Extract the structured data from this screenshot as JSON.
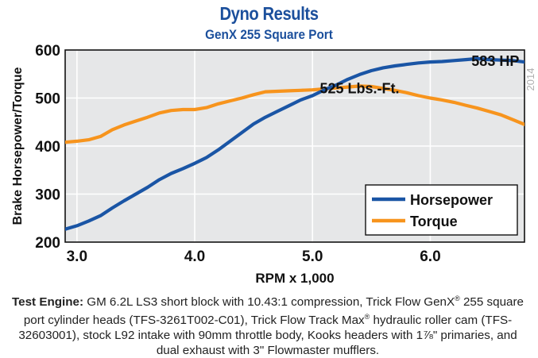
{
  "chart_data": {
    "type": "line",
    "title": "Dyno Results",
    "subtitle": "GenX 255 Square Port",
    "xlabel": "RPM x 1,000",
    "ylabel": "Brake Horsepower/Torque",
    "xlim": [
      2.9,
      6.8
    ],
    "ylim": [
      200,
      600
    ],
    "x_ticks": [
      3.0,
      4.0,
      5.0,
      6.0
    ],
    "x_tick_labels": [
      "3.0",
      "4.0",
      "5.0",
      "6.0"
    ],
    "y_ticks": [
      200,
      300,
      400,
      500,
      600
    ],
    "y_tick_labels": [
      "200",
      "300",
      "400",
      "500",
      "600"
    ],
    "grid": true,
    "legend": "bottom-right",
    "year_label": "2014",
    "series": [
      {
        "name": "Horsepower",
        "color": "#1a55a5",
        "x": [
          2.9,
          3.0,
          3.1,
          3.2,
          3.3,
          3.4,
          3.5,
          3.6,
          3.7,
          3.8,
          3.9,
          4.0,
          4.1,
          4.2,
          4.3,
          4.4,
          4.5,
          4.6,
          4.7,
          4.8,
          4.9,
          5.0,
          5.1,
          5.2,
          5.3,
          5.4,
          5.5,
          5.6,
          5.7,
          5.8,
          5.9,
          6.0,
          6.1,
          6.2,
          6.3,
          6.4,
          6.5,
          6.6,
          6.7,
          6.8
        ],
        "values": [
          227,
          234,
          244,
          255,
          271,
          286,
          300,
          314,
          330,
          343,
          353,
          364,
          376,
          392,
          410,
          428,
          446,
          460,
          472,
          484,
          496,
          505,
          517,
          527,
          539,
          549,
          557,
          563,
          567,
          570,
          573,
          575,
          576,
          578,
          580,
          582,
          580,
          579,
          578,
          575
        ]
      },
      {
        "name": "Torque",
        "color": "#f7941d",
        "x": [
          2.9,
          3.0,
          3.1,
          3.2,
          3.3,
          3.4,
          3.5,
          3.6,
          3.7,
          3.8,
          3.9,
          4.0,
          4.1,
          4.2,
          4.3,
          4.4,
          4.5,
          4.6,
          4.7,
          4.8,
          4.9,
          5.0,
          5.1,
          5.2,
          5.3,
          5.4,
          5.5,
          5.6,
          5.7,
          5.8,
          5.9,
          6.0,
          6.1,
          6.2,
          6.3,
          6.4,
          6.5,
          6.6,
          6.7,
          6.8
        ],
        "values": [
          408,
          410,
          413,
          420,
          434,
          444,
          452,
          460,
          469,
          474,
          476,
          476,
          480,
          488,
          494,
          500,
          507,
          513,
          514,
          515,
          516,
          517,
          519,
          521,
          523,
          525,
          524,
          520,
          516,
          511,
          505,
          500,
          496,
          491,
          485,
          479,
          472,
          465,
          455,
          445
        ]
      }
    ],
    "annotations": [
      {
        "text": "583 HP",
        "x": 6.35,
        "y": 567
      },
      {
        "text": "525 Lbs.-Ft.",
        "x": 5.4,
        "y": 510
      }
    ]
  },
  "caption": {
    "label": "Test Engine:",
    "text_part1": " GM 6.2L LS3 short block with 10.43:1 compression, Trick Flow GenX",
    "reg1": "®",
    "text_part2": " 255 square port cylinder heads (TFS-3261T002-C01), Trick Flow Track Max",
    "reg2": "®",
    "text_part3": " hydraulic roller cam (TFS-32603001), stock L92 intake with 90mm throttle body, Kooks headers with 1",
    "fraction": "⅞",
    "text_part4": "\" primaries, and dual exhaust with 3\" Flowmaster mufflers."
  }
}
